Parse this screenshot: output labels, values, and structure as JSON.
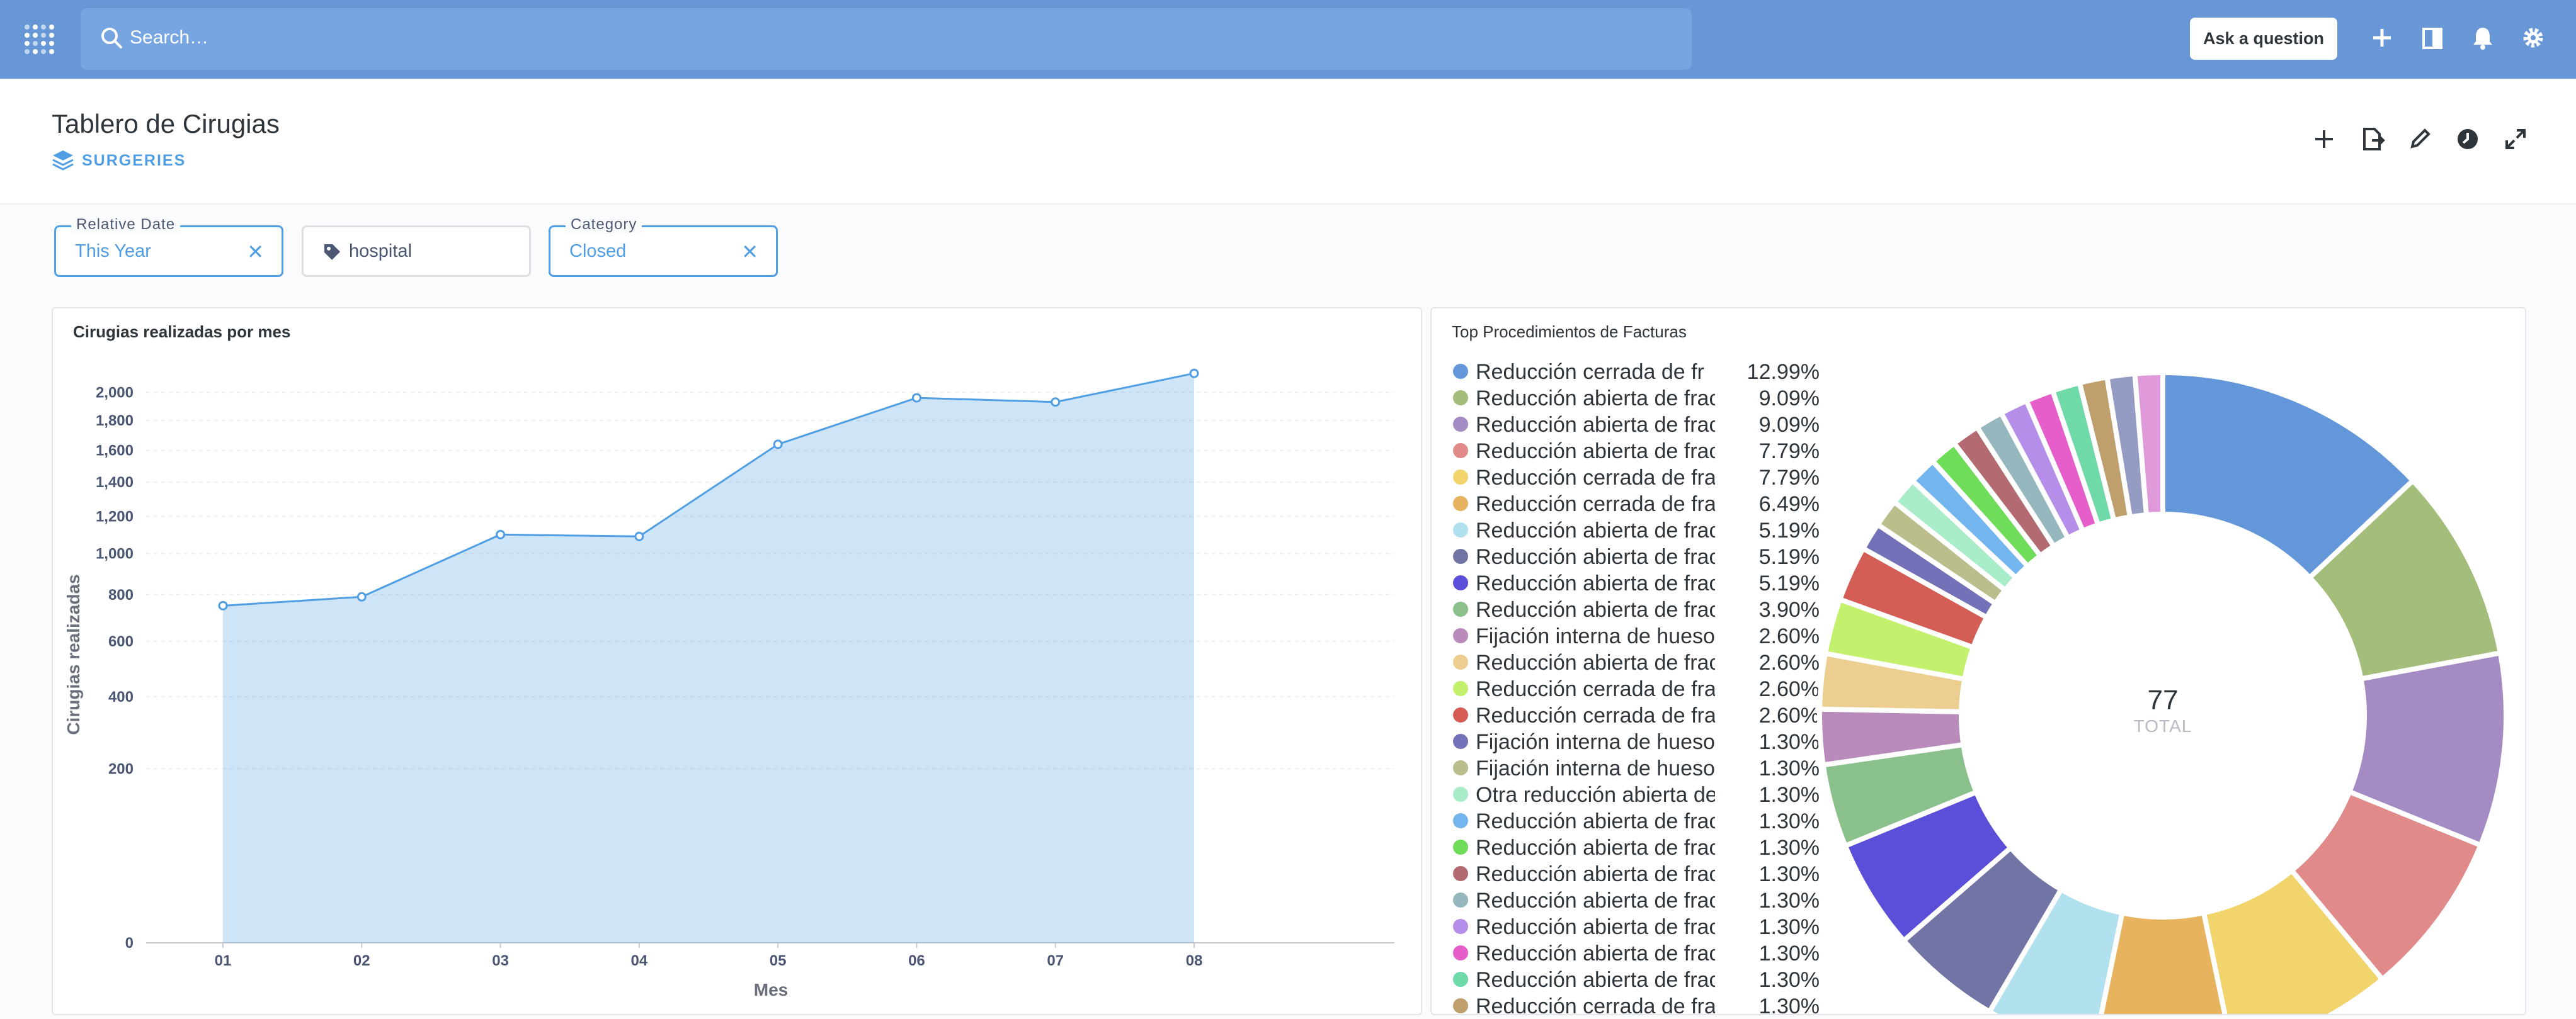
{
  "topbar": {
    "search_placeholder": "Search…",
    "ask_label": "Ask a question",
    "icons": [
      "plus-icon",
      "bookmark-book-icon",
      "bell-icon",
      "gear-icon"
    ]
  },
  "header": {
    "title": "Tablero de Cirugias",
    "collection": "SURGERIES"
  },
  "filters": [
    {
      "label": "Relative Date",
      "value": "This Year"
    },
    {
      "label": "",
      "value": "hospital"
    },
    {
      "label": "Category",
      "value": "Closed"
    }
  ],
  "cards": {
    "line": {
      "title": "Cirugias realizadas por mes"
    },
    "pie": {
      "title": "Top Procedimientos de Facturas",
      "total_value": "77",
      "total_label": "TOTAL"
    }
  },
  "chart_data": [
    {
      "type": "area",
      "title": "Cirugias realizadas por mes",
      "xlabel": "Mes",
      "ylabel": "Cirugias realizadas",
      "scale": "pow",
      "categories": [
        "01",
        "02",
        "03",
        "04",
        "05",
        "06",
        "07",
        "08"
      ],
      "values": [
        750,
        790,
        1100,
        1090,
        1640,
        1960,
        1930,
        2140
      ],
      "yticks": [
        "0",
        "200",
        "400",
        "600",
        "800",
        "1,000",
        "1,200",
        "1,400",
        "1,600",
        "1,800",
        "2,000"
      ],
      "ytick_values": [
        0,
        200,
        400,
        600,
        800,
        1000,
        1200,
        1400,
        1600,
        1800,
        2000
      ],
      "color": "#509ee3"
    },
    {
      "type": "pie",
      "title": "Top Procedimientos de Facturas",
      "total": 77,
      "slices": [
        {
          "label": "Reducción cerrada de fr",
          "pct": "12.99%",
          "value": 12.99,
          "color": "#6397da"
        },
        {
          "label": "Reducción abierta de frac",
          "pct": "9.09%",
          "value": 9.09,
          "color": "#a3bd7a"
        },
        {
          "label": "Reducción abierta de frac",
          "pct": "9.09%",
          "value": 9.09,
          "color": "#a48bc4"
        },
        {
          "label": "Reducción abierta de frac",
          "pct": "7.79%",
          "value": 7.79,
          "color": "#e08a8a"
        },
        {
          "label": "Reducción cerrada de frac",
          "pct": "7.79%",
          "value": 7.79,
          "color": "#f2d46d"
        },
        {
          "label": "Reducción cerrada de frac",
          "pct": "6.49%",
          "value": 6.49,
          "color": "#e8b35f"
        },
        {
          "label": "Reducción abierta de frac",
          "pct": "5.19%",
          "value": 5.19,
          "color": "#b1e1ef"
        },
        {
          "label": "Reducción abierta de frac",
          "pct": "5.19%",
          "value": 5.19,
          "color": "#7274a6"
        },
        {
          "label": "Reducción abierta de frac",
          "pct": "5.19%",
          "value": 5.19,
          "color": "#5b4fd9"
        },
        {
          "label": "Reducción abierta de frac",
          "pct": "3.90%",
          "value": 3.9,
          "color": "#8ac08b"
        },
        {
          "label": "Fijación interna de hueso",
          "pct": "2.60%",
          "value": 2.6,
          "color": "#b88bba"
        },
        {
          "label": "Reducción abierta de frac",
          "pct": "2.60%",
          "value": 2.6,
          "color": "#eccf90"
        },
        {
          "label": "Reducción cerrada de frac",
          "pct": "2.60%",
          "value": 2.6,
          "color": "#c3f06d"
        },
        {
          "label": "Reducción cerrada de frac",
          "pct": "2.60%",
          "value": 2.6,
          "color": "#d45e56"
        },
        {
          "label": "Fijación interna de hueso",
          "pct": "1.30%",
          "value": 1.3,
          "color": "#7371b7"
        },
        {
          "label": "Fijación interna de hueso",
          "pct": "1.30%",
          "value": 1.3,
          "color": "#bcbd8d"
        },
        {
          "label": "Otra reducción abierta de",
          "pct": "1.30%",
          "value": 1.3,
          "color": "#a8ecc9"
        },
        {
          "label": "Reducción abierta de frac",
          "pct": "1.30%",
          "value": 1.3,
          "color": "#73b5ee"
        },
        {
          "label": "Reducción abierta de frac",
          "pct": "1.30%",
          "value": 1.3,
          "color": "#6fdc5a"
        },
        {
          "label": "Reducción abierta de frac",
          "pct": "1.30%",
          "value": 1.3,
          "color": "#b36a71"
        },
        {
          "label": "Reducción abierta de frac",
          "pct": "1.30%",
          "value": 1.3,
          "color": "#95b7bd"
        },
        {
          "label": "Reducción abierta de frac",
          "pct": "1.30%",
          "value": 1.3,
          "color": "#b48ee8"
        },
        {
          "label": "Reducción abierta de frac",
          "pct": "1.30%",
          "value": 1.3,
          "color": "#e65ec9"
        },
        {
          "label": "Reducción abierta de frac",
          "pct": "1.30%",
          "value": 1.3,
          "color": "#6fdaa7"
        },
        {
          "label": "Reducción cerrada de frac",
          "pct": "1.30%",
          "value": 1.3,
          "color": "#bfa06d"
        },
        {
          "label": "",
          "pct": "",
          "value": 1.3,
          "color": "#949cc4"
        },
        {
          "label": "",
          "pct": "",
          "value": 1.3,
          "color": "#df99d8"
        }
      ]
    }
  ]
}
